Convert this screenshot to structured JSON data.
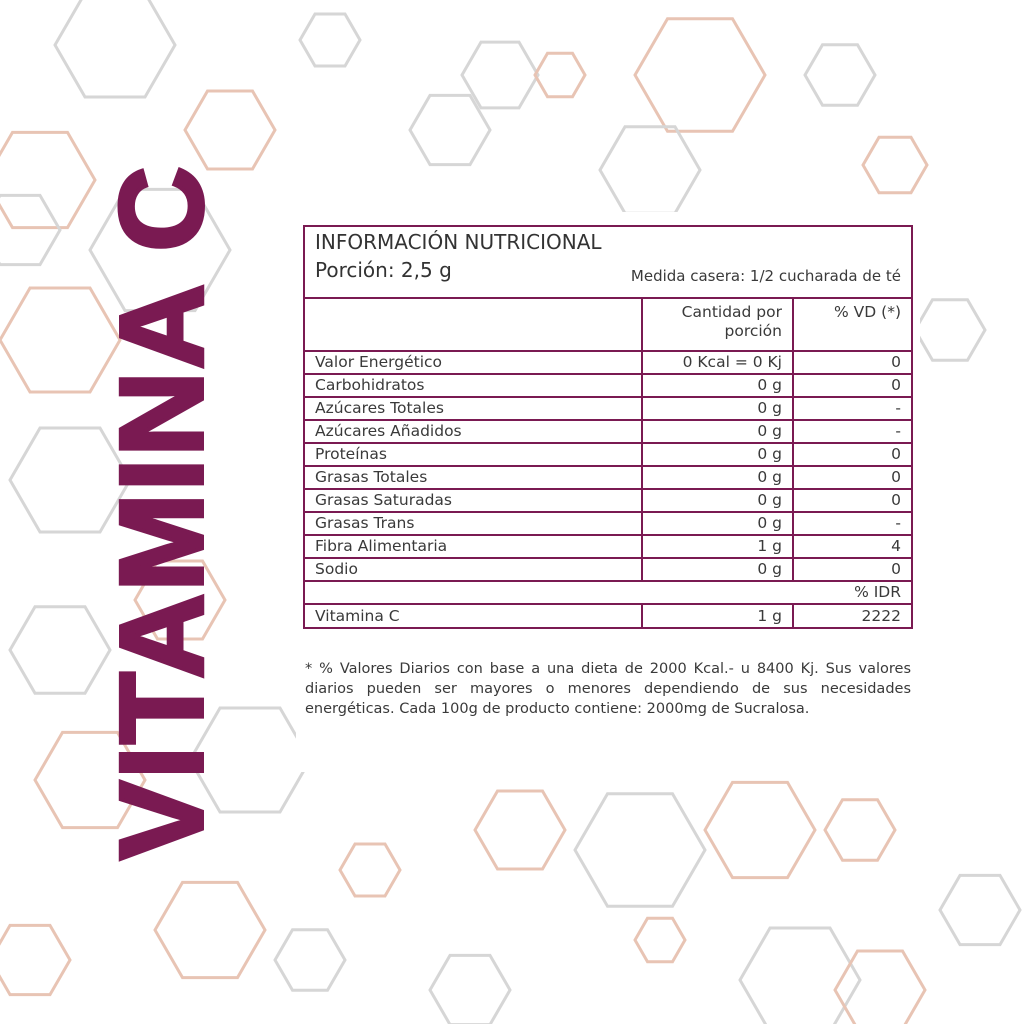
{
  "product_title": "VITAMINA C",
  "colors": {
    "brand": "#7a1a52",
    "hex_gray": "#d6d6d6",
    "hex_peach": "#e8c4b4"
  },
  "label": {
    "heading": "INFORMACIÓN NUTRICIONAL",
    "portion": "Porción: 2,5 g",
    "household_measure": "Medida casera: 1/2 cucharada de té",
    "columns": [
      "",
      "Cantidad por porción",
      "% VD (*)"
    ],
    "rows": [
      {
        "name": "Valor Energético",
        "amount": "0 Kcal = 0 Kj",
        "vd": "0"
      },
      {
        "name": "Carbohidratos",
        "amount": "0 g",
        "vd": "0"
      },
      {
        "name": "Azúcares Totales",
        "amount": "0 g",
        "vd": "-"
      },
      {
        "name": "Azúcares Añadidos",
        "amount": "0 g",
        "vd": "-"
      },
      {
        "name": "Proteínas",
        "amount": "0 g",
        "vd": "0"
      },
      {
        "name": "Grasas Totales",
        "amount": "0 g",
        "vd": "0"
      },
      {
        "name": "Grasas Saturadas",
        "amount": "0 g",
        "vd": "0"
      },
      {
        "name": "Grasas Trans",
        "amount": "0 g",
        "vd": "-"
      },
      {
        "name": "Fibra Alimentaria",
        "amount": "1 g",
        "vd": "4"
      },
      {
        "name": "Sodio",
        "amount": "0 g",
        "vd": "0"
      }
    ],
    "idr_header": "% IDR",
    "vitamin_row": {
      "name": "Vitamina C",
      "amount": "1 g",
      "idr": "2222"
    }
  },
  "footnote": "* % Valores Diarios con base a una dieta de 2000 Kcal.- u 8400 Kj. Sus valores diarios pueden ser mayores o menores dependiendo de sus necesidades energéticas. Cada 100g de producto contiene: 2000mg de Sucralosa."
}
